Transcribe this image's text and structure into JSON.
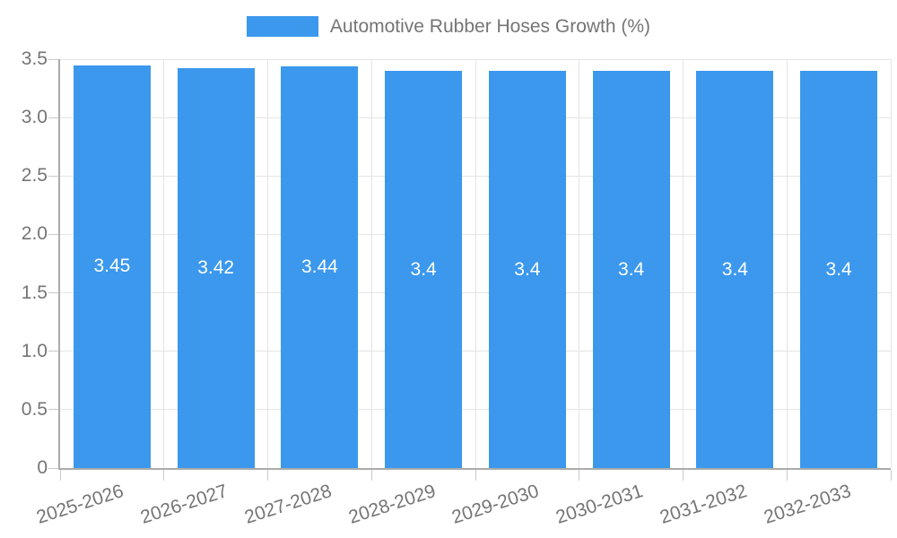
{
  "legend": {
    "label": "Automotive Rubber Hoses Growth (%)"
  },
  "colors": {
    "bar": "#3b98ed",
    "bar_label": "#ffffff",
    "axis_text": "#757575",
    "grid_line": "#e5e5e5",
    "axis_line": "#ababab",
    "background": "#ffffff"
  },
  "chart_data": {
    "type": "bar",
    "title": "",
    "series_name": "Automotive Rubber Hoses Growth (%)",
    "categories": [
      "2025-2026",
      "2026-2027",
      "2027-2028",
      "2028-2029",
      "2029-2030",
      "2030-2031",
      "2031-2032",
      "2032-2033"
    ],
    "values": [
      3.45,
      3.42,
      3.44,
      3.4,
      3.4,
      3.4,
      3.4,
      3.4
    ],
    "value_labels": [
      "3.45",
      "3.42",
      "3.44",
      "3.4",
      "3.4",
      "3.4",
      "3.4",
      "3.4"
    ],
    "xlabel": "",
    "ylabel": "",
    "ylim": [
      0,
      3.5
    ],
    "yticks": [
      0,
      0.5,
      1,
      1.5,
      2,
      2.5,
      3,
      3.5
    ],
    "ytick_labels": [
      "0",
      "0.5",
      "1.0",
      "1.5",
      "2.0",
      "2.5",
      "3.0",
      "3.5"
    ],
    "grid": true,
    "legend_position": "top",
    "bar_label_position": "center"
  }
}
